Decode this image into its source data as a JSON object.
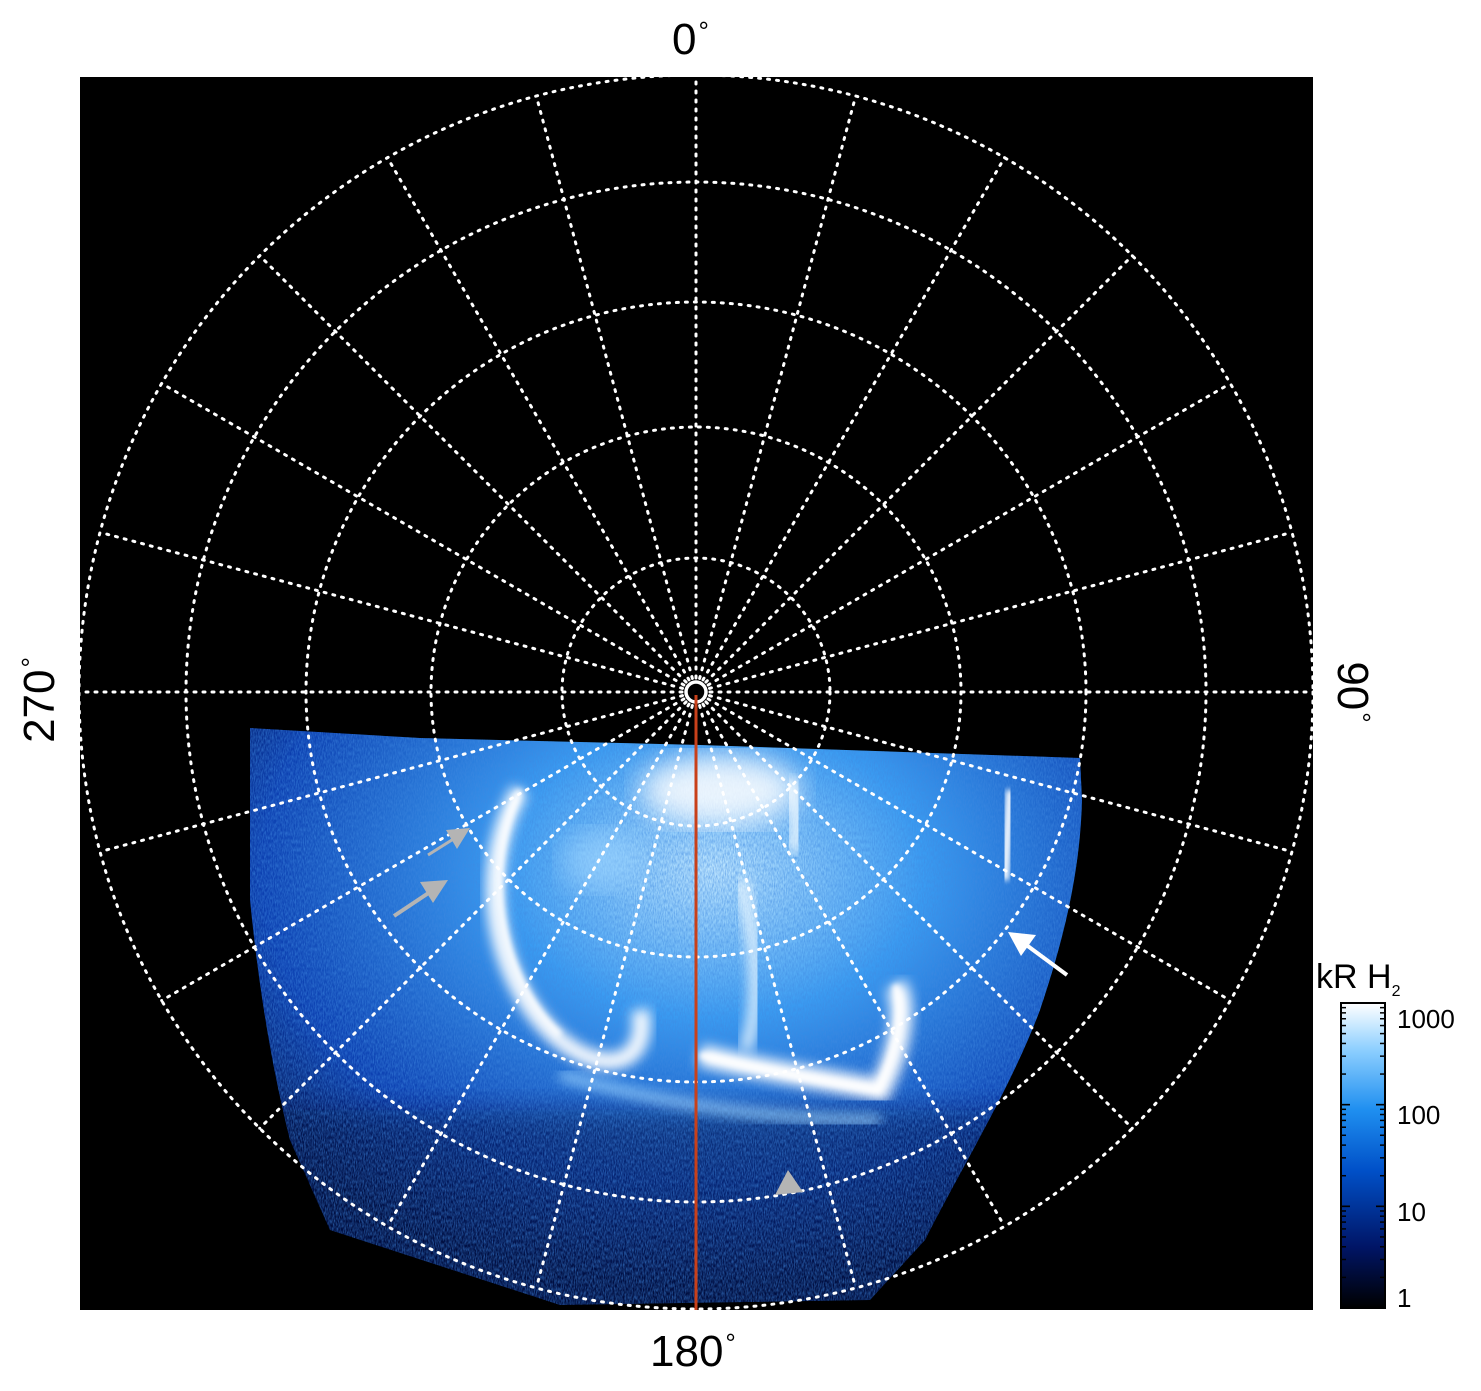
{
  "axis_labels": {
    "top": "0",
    "right": "90",
    "bottom": "180",
    "left": "270",
    "degree_symbol": "°"
  },
  "colorbar": {
    "title": "kR H",
    "title_subscript": "2",
    "ticks": [
      "1000",
      "100",
      "10",
      "1"
    ],
    "scale": "log",
    "range": [
      1,
      1000
    ],
    "colors": [
      "#000000",
      "#001566",
      "#0050c8",
      "#1f8ff0",
      "#8fd0ff",
      "#ffffff"
    ]
  },
  "colors": {
    "background": "#000000",
    "grid": "#ffffff",
    "meridian_line": "#c8401a",
    "arrow_white": "#ffffff",
    "arrow_gray": "#b4b4b4"
  }
}
